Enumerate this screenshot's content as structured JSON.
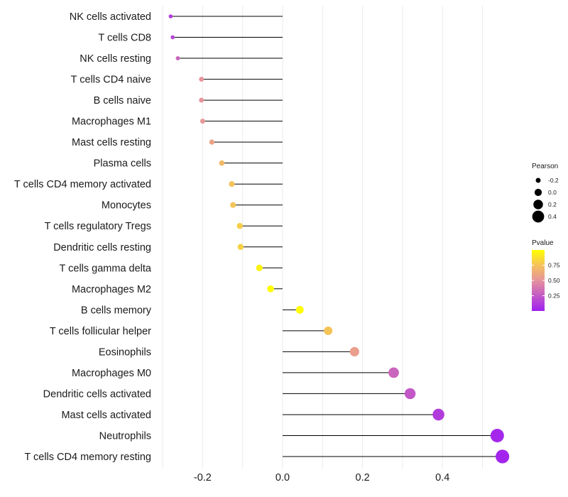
{
  "chart_data": {
    "type": "lollipop",
    "xlabel": "",
    "ylabel": "",
    "xlim": [
      -0.3,
      0.56
    ],
    "xticks": [
      -0.2,
      0.0,
      0.2,
      0.4
    ],
    "xtick_labels": [
      "-0.2",
      "0.0",
      "0.2",
      "0.4"
    ],
    "grid": true,
    "categories": [
      "NK cells activated",
      "T cells CD8",
      "NK cells resting",
      "T cells CD4 naive",
      "B cells naive",
      "Macrophages M1",
      "Mast cells resting",
      "Plasma cells",
      "T cells CD4 memory activated",
      "Monocytes",
      "T cells regulatory  Tregs",
      "Dendritic cells resting",
      "T cells gamma delta",
      "Macrophages M2",
      "B cells memory",
      "T cells follicular helper",
      "Eosinophils",
      "Macrophages M0",
      "Dendritic cells activated",
      "Mast cells activated",
      "Neutrophils",
      "T cells CD4 memory resting"
    ],
    "pearson": [
      -0.28,
      -0.275,
      -0.262,
      -0.203,
      -0.203,
      -0.2,
      -0.177,
      -0.152,
      -0.127,
      -0.124,
      -0.107,
      -0.105,
      -0.058,
      -0.03,
      0.043,
      0.114,
      0.18,
      0.278,
      0.319,
      0.39,
      0.537,
      0.55
    ],
    "pvalue": [
      0.12,
      0.16,
      0.3,
      0.5,
      0.5,
      0.52,
      0.58,
      0.7,
      0.75,
      0.76,
      0.8,
      0.81,
      0.95,
      0.99,
      0.99,
      0.76,
      0.56,
      0.3,
      0.24,
      0.12,
      0.03,
      0.02
    ],
    "legend": {
      "size_title": "Pearson",
      "size_labels": [
        "-0.2",
        "0.0",
        "0.2",
        "0.4"
      ],
      "size_values": [
        -0.2,
        0.0,
        0.2,
        0.4
      ],
      "color_title": "Pvalue",
      "color_labels": [
        "0.75",
        "0.50",
        "0.25"
      ],
      "color_values": [
        0.75,
        0.5,
        0.25
      ],
      "color_range": [
        0.0,
        1.0
      ],
      "color_low": "#a020f0",
      "color_high": "#ffff00",
      "placement": "right"
    },
    "colors": {
      "stem": "#000000",
      "grid": "#ebebeb"
    }
  }
}
